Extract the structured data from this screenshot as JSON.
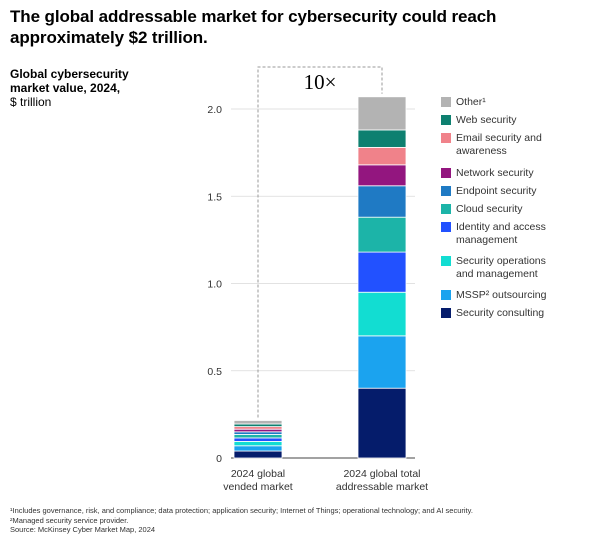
{
  "title": "The global addressable market for cybersecurity could reach approximately $2 trillion.",
  "subtitle": {
    "bold": "Global cybersecurity market value, 2024,",
    "unit": "$ trillion"
  },
  "callout": "10×",
  "chart_data": {
    "type": "bar",
    "stacked": true,
    "title": "The global addressable market for cybersecurity could reach approximately $2 trillion.",
    "ylabel": "$ trillion",
    "ylim": [
      0,
      2.0
    ],
    "yticks": [
      0,
      0.5,
      1.0,
      1.5,
      2.0
    ],
    "ytick_labels": [
      "0",
      "0.5",
      "1.0",
      "1.5",
      "2.0"
    ],
    "categories": [
      "2024 global vended market",
      "2024 global total addressable market"
    ],
    "category_labels": [
      [
        "2024 global",
        "vended market"
      ],
      [
        "2024 global total",
        "addressable market"
      ]
    ],
    "series": [
      {
        "name": "Security consulting",
        "color": "#051c6b",
        "values": [
          0.04,
          0.4
        ]
      },
      {
        "name": "MSSP² outsourcing",
        "color": "#1ba3ef",
        "values": [
          0.03,
          0.3
        ]
      },
      {
        "name": "Security operations and management",
        "color": "#12ddd2",
        "values": [
          0.025,
          0.25
        ]
      },
      {
        "name": "Identity and access management",
        "color": "#2251ff",
        "values": [
          0.02,
          0.23
        ]
      },
      {
        "name": "Cloud security",
        "color": "#1cb4a8",
        "values": [
          0.02,
          0.2
        ]
      },
      {
        "name": "Endpoint security",
        "color": "#1f7ac4",
        "values": [
          0.015,
          0.18
        ]
      },
      {
        "name": "Network security",
        "color": "#93167f",
        "values": [
          0.015,
          0.12
        ]
      },
      {
        "name": "Email security and awareness",
        "color": "#f0828a",
        "values": [
          0.015,
          0.1
        ]
      },
      {
        "name": "Web security",
        "color": "#0e8070",
        "values": [
          0.015,
          0.1
        ]
      },
      {
        "name": "Other¹",
        "color": "#b3b3b3",
        "values": [
          0.02,
          0.19
        ]
      }
    ]
  },
  "footnotes": [
    "¹Includes governance, risk, and compliance; data protection; application security; Internet of Things; operational technology; and AI security.",
    "²Managed security service provider.",
    "Source: McKinsey Cyber Market Map, 2024"
  ]
}
